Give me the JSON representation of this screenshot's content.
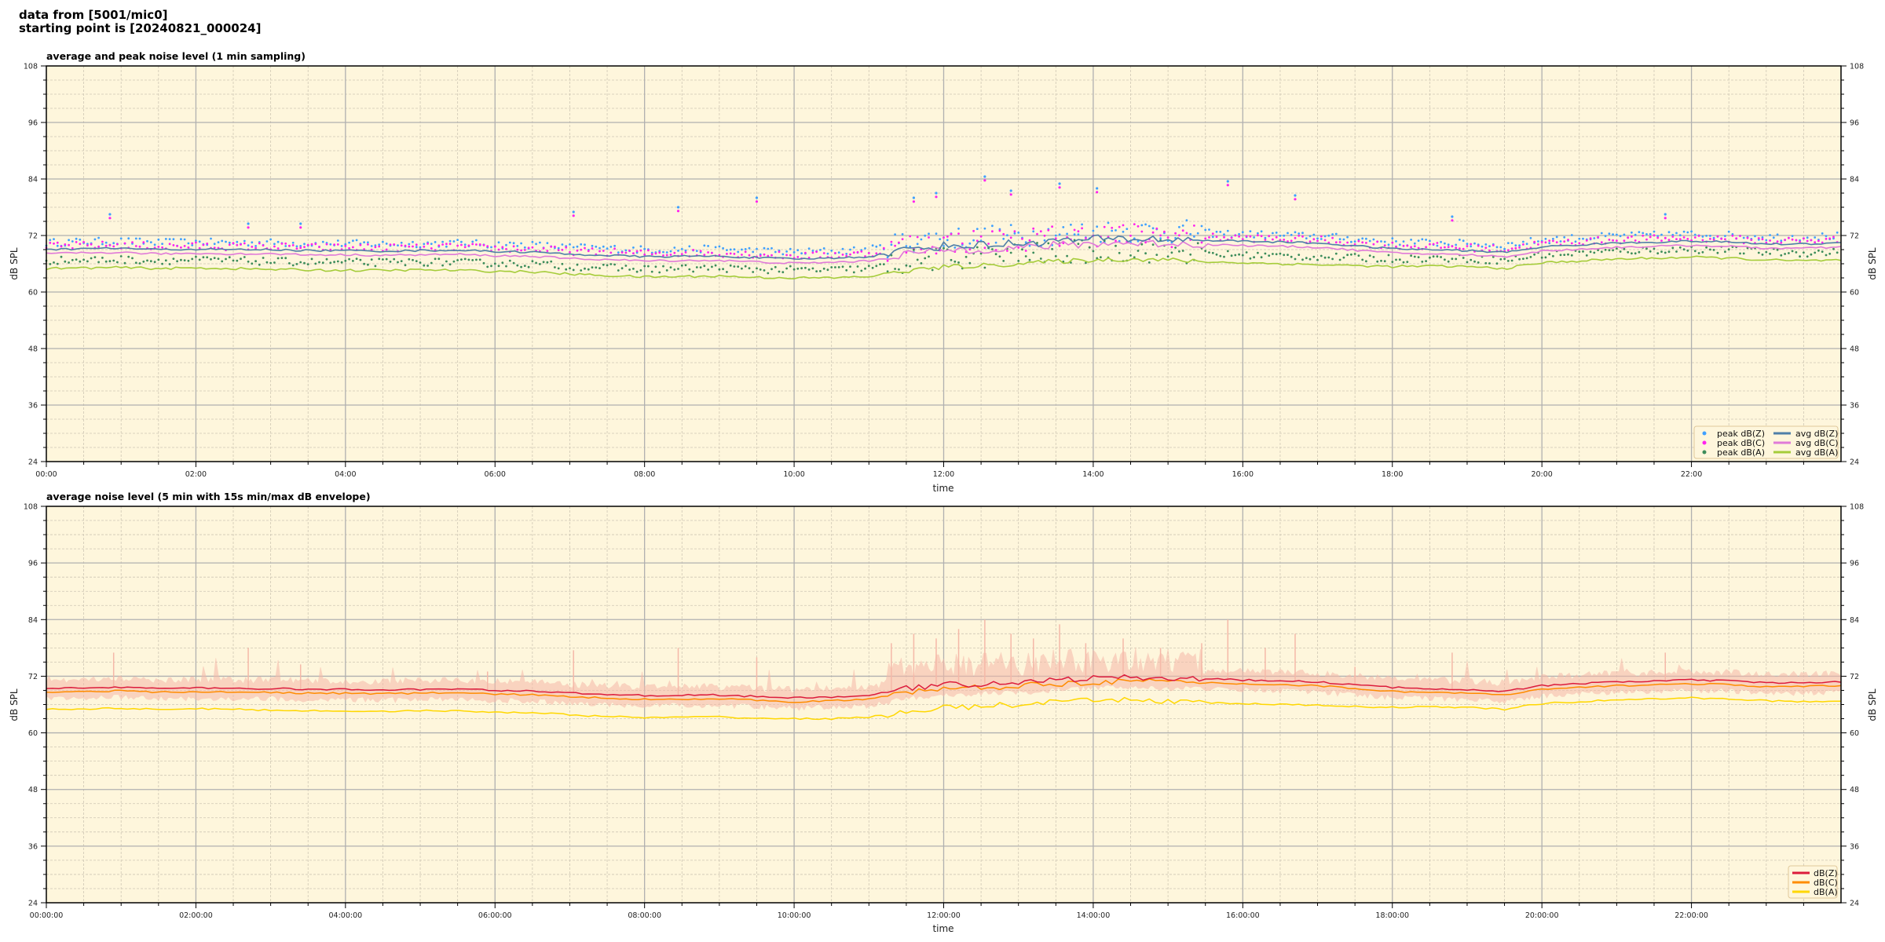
{
  "header": {
    "line1": "data from [5001/mic0]",
    "line2": "starting point is [20240821_000024]"
  },
  "colors": {
    "background": "#fef6dc",
    "peak_z": "#3fa0ff",
    "peak_c": "#ff22ee",
    "peak_a": "#3c8c5a",
    "avg_z": "#4f7fa8",
    "avg_c": "#e07ad8",
    "avg_a": "#a5cc3a",
    "db_z": "#dc1c3c",
    "db_c": "#ff8c00",
    "db_a": "#ffd700",
    "envelope": "#f5b8a8"
  },
  "chart_data": [
    {
      "type": "line",
      "title": "average and peak noise level (1 min sampling)",
      "xlabel": "time",
      "ylabel": "dB SPL",
      "ylim": [
        24,
        108
      ],
      "yticks": [
        "24",
        "36",
        "48",
        "60",
        "72",
        "84",
        "96",
        "108"
      ],
      "xticks": [
        "00:00",
        "02:00",
        "04:00",
        "06:00",
        "08:00",
        "10:00",
        "12:00",
        "14:00",
        "16:00",
        "18:00",
        "20:00",
        "22:00"
      ],
      "x_hours_step": 0.5,
      "grid": true,
      "legend": "bottom-right",
      "series": [
        {
          "name": "peak dB(Z)",
          "kind": "scatter",
          "color_key": "peak_z",
          "values": [
            70.4,
            70.6,
            70.7,
            70.4,
            70.5,
            70.4,
            70.4,
            70.2,
            70.2,
            70.1,
            70.2,
            70.3,
            70.0,
            69.9,
            69.4,
            69.2,
            68.9,
            69.0,
            69.0,
            68.7,
            68.4,
            68.6,
            68.9,
            70.4,
            71.2,
            71.4,
            71.7,
            72.2,
            72.6,
            72.7,
            72.6,
            72.4,
            72.2,
            72.0,
            71.8,
            71.2,
            70.6,
            70.4,
            70.2,
            69.8,
            71.0,
            71.4,
            71.8,
            72.0,
            72.2,
            72.0,
            71.6,
            71.6,
            71.8
          ]
        },
        {
          "name": "peak dB(C)",
          "kind": "scatter",
          "color_key": "peak_c",
          "values": [
            69.6,
            69.8,
            69.9,
            69.6,
            69.7,
            69.6,
            69.6,
            69.4,
            69.4,
            69.3,
            69.4,
            69.5,
            69.2,
            69.1,
            68.6,
            68.4,
            68.1,
            68.2,
            68.2,
            67.9,
            67.6,
            67.8,
            68.1,
            69.6,
            70.4,
            70.6,
            70.9,
            71.4,
            71.8,
            71.9,
            71.8,
            71.6,
            71.4,
            71.2,
            71.0,
            70.4,
            69.8,
            69.6,
            69.4,
            69.0,
            70.2,
            70.6,
            71.0,
            71.2,
            71.4,
            71.2,
            70.8,
            70.8,
            71.0
          ]
        },
        {
          "name": "peak dB(A)",
          "kind": "scatter",
          "color_key": "peak_a",
          "values": [
            66.6,
            66.7,
            66.8,
            66.6,
            66.7,
            66.6,
            66.4,
            66.3,
            66.2,
            66.2,
            66.3,
            66.2,
            66.0,
            65.9,
            65.4,
            65.1,
            64.8,
            64.9,
            65.0,
            64.7,
            64.6,
            64.6,
            64.9,
            66.1,
            66.9,
            67.2,
            67.6,
            68.1,
            68.4,
            68.6,
            68.4,
            68.0,
            67.8,
            67.6,
            67.4,
            67.2,
            67.0,
            67.1,
            67.0,
            66.6,
            67.8,
            68.2,
            68.6,
            68.8,
            69.0,
            68.8,
            68.4,
            68.2,
            68.4
          ]
        },
        {
          "name": "avg dB(Z)",
          "kind": "line",
          "color_key": "avg_z",
          "values": [
            69.0,
            69.2,
            69.3,
            69.0,
            69.1,
            69.0,
            69.0,
            68.8,
            68.8,
            68.7,
            68.8,
            68.9,
            68.6,
            68.5,
            68.0,
            67.8,
            67.5,
            67.6,
            67.6,
            67.3,
            67.0,
            67.2,
            67.5,
            69.0,
            69.8,
            70.0,
            70.3,
            70.8,
            71.2,
            71.3,
            71.2,
            71.0,
            70.8,
            70.6,
            70.4,
            69.8,
            69.2,
            69.0,
            68.8,
            68.4,
            69.6,
            70.0,
            70.4,
            70.6,
            70.8,
            70.6,
            70.2,
            70.2,
            70.4
          ]
        },
        {
          "name": "avg dB(C)",
          "kind": "line",
          "color_key": "avg_c",
          "values": [
            68.1,
            68.3,
            68.4,
            68.1,
            68.2,
            68.1,
            68.1,
            67.9,
            67.9,
            67.8,
            67.9,
            68.0,
            67.7,
            67.6,
            67.1,
            66.9,
            66.6,
            66.7,
            66.7,
            66.4,
            66.1,
            66.3,
            66.6,
            68.1,
            68.9,
            69.1,
            69.4,
            69.9,
            70.3,
            70.4,
            70.3,
            70.1,
            69.9,
            69.7,
            69.5,
            68.9,
            68.3,
            68.1,
            67.9,
            67.5,
            68.7,
            69.1,
            69.5,
            69.7,
            69.9,
            69.7,
            69.3,
            69.3,
            69.5
          ]
        },
        {
          "name": "avg dB(A)",
          "kind": "line",
          "color_key": "avg_a",
          "values": [
            65.0,
            65.1,
            65.2,
            65.0,
            65.1,
            65.0,
            64.8,
            64.7,
            64.6,
            64.6,
            64.7,
            64.6,
            64.4,
            64.3,
            63.8,
            63.5,
            63.2,
            63.3,
            63.4,
            63.1,
            63.0,
            63.0,
            63.3,
            64.5,
            65.3,
            65.6,
            66.0,
            66.5,
            66.8,
            67.0,
            66.8,
            66.4,
            66.2,
            66.0,
            65.8,
            65.6,
            65.4,
            65.5,
            65.4,
            65.0,
            66.2,
            66.6,
            67.0,
            67.2,
            67.4,
            67.2,
            66.8,
            66.6,
            66.8
          ]
        }
      ],
      "peak_outliers": [
        [
          0.85,
          76.5
        ],
        [
          2.7,
          74.5
        ],
        [
          3.4,
          74.5
        ],
        [
          7.05,
          77
        ],
        [
          8.45,
          78
        ],
        [
          9.5,
          80
        ],
        [
          11.6,
          80
        ],
        [
          11.9,
          81
        ],
        [
          12.55,
          84.5
        ],
        [
          12.9,
          81.5
        ],
        [
          13.55,
          83
        ],
        [
          14.05,
          82
        ],
        [
          15.8,
          83.5
        ],
        [
          16.7,
          80.5
        ],
        [
          18.8,
          76
        ],
        [
          21.65,
          76.5
        ]
      ]
    },
    {
      "type": "line",
      "title": "average noise level (5 min with 15s min/max dB envelope)",
      "xlabel": "time",
      "ylabel": "dB SPL",
      "ylim": [
        24,
        108
      ],
      "yticks": [
        "24",
        "36",
        "48",
        "60",
        "72",
        "84",
        "96",
        "108"
      ],
      "xticks": [
        "00:00:00",
        "02:00:00",
        "04:00:00",
        "06:00:00",
        "08:00:00",
        "10:00:00",
        "12:00:00",
        "14:00:00",
        "16:00:00",
        "18:00:00",
        "20:00:00",
        "22:00:00"
      ],
      "x_hours_step": 0.5,
      "grid": true,
      "legend": "bottom-right",
      "series": [
        {
          "name": "dB(Z)",
          "color_key": "db_z",
          "values": [
            69.4,
            69.6,
            69.7,
            69.4,
            69.5,
            69.4,
            69.4,
            69.2,
            69.2,
            69.1,
            69.2,
            69.3,
            69.0,
            68.9,
            68.4,
            68.2,
            67.9,
            68.0,
            68.0,
            67.7,
            67.4,
            67.6,
            67.9,
            69.4,
            70.2,
            70.4,
            70.7,
            71.2,
            71.6,
            71.7,
            71.6,
            71.4,
            71.2,
            71.0,
            70.8,
            70.2,
            69.6,
            69.4,
            69.2,
            68.8,
            70.0,
            70.4,
            70.8,
            71.0,
            71.2,
            71.0,
            70.6,
            70.6,
            70.8
          ]
        },
        {
          "name": "dB(C)",
          "color_key": "db_c",
          "values": [
            68.6,
            68.8,
            68.9,
            68.6,
            68.7,
            68.6,
            68.6,
            68.4,
            68.4,
            68.3,
            68.4,
            68.5,
            68.2,
            68.1,
            67.6,
            67.4,
            67.1,
            67.2,
            67.2,
            66.9,
            66.6,
            66.8,
            67.1,
            68.6,
            69.4,
            69.6,
            69.9,
            70.4,
            70.8,
            70.9,
            70.8,
            70.6,
            70.4,
            70.2,
            70.0,
            69.4,
            68.8,
            68.6,
            68.4,
            68.0,
            69.2,
            69.6,
            70.0,
            70.2,
            70.4,
            70.2,
            69.8,
            69.8,
            70.0
          ]
        },
        {
          "name": "dB(A)",
          "color_key": "db_a",
          "values": [
            65.0,
            65.1,
            65.2,
            65.0,
            65.1,
            65.0,
            64.8,
            64.7,
            64.6,
            64.6,
            64.7,
            64.6,
            64.4,
            64.3,
            63.8,
            63.5,
            63.2,
            63.3,
            63.4,
            63.1,
            63.0,
            63.0,
            63.3,
            64.5,
            65.3,
            65.6,
            66.0,
            66.5,
            66.8,
            67.0,
            66.8,
            66.4,
            66.2,
            66.0,
            65.8,
            65.6,
            65.4,
            65.5,
            65.4,
            65.0,
            66.2,
            66.6,
            67.0,
            67.2,
            67.4,
            67.2,
            66.8,
            66.6,
            66.8
          ]
        }
      ],
      "envelope_max_spikes": [
        [
          0.9,
          77
        ],
        [
          2.7,
          78
        ],
        [
          3.4,
          74.5
        ],
        [
          5.9,
          73
        ],
        [
          7.05,
          77.5
        ],
        [
          8.45,
          78
        ],
        [
          9.5,
          76
        ],
        [
          11.3,
          79
        ],
        [
          11.6,
          81
        ],
        [
          11.9,
          80
        ],
        [
          12.2,
          82
        ],
        [
          12.55,
          84
        ],
        [
          12.9,
          81
        ],
        [
          13.2,
          80
        ],
        [
          13.55,
          83
        ],
        [
          13.9,
          79
        ],
        [
          14.4,
          80
        ],
        [
          14.9,
          78
        ],
        [
          15.45,
          79
        ],
        [
          15.8,
          84
        ],
        [
          16.3,
          78
        ],
        [
          16.7,
          81
        ],
        [
          17.5,
          74
        ],
        [
          18.8,
          77
        ],
        [
          21.65,
          77
        ]
      ]
    }
  ]
}
